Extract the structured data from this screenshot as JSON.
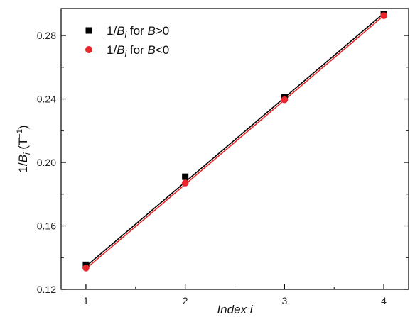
{
  "chart_data": {
    "type": "scatter",
    "title": "",
    "xlabel": "Index i",
    "ylabel": "1/B_i (T^-1)",
    "xlim": [
      0.75,
      4.25
    ],
    "ylim": [
      0.12,
      0.297
    ],
    "xticks": [
      1,
      2,
      3,
      4
    ],
    "yticks": [
      0.12,
      0.16,
      0.2,
      0.24,
      0.28
    ],
    "ytick_labels": [
      "0.12",
      "0.16",
      "0.20",
      "0.24",
      "0.28"
    ],
    "grid": false,
    "legend_position": "top-left",
    "series": [
      {
        "name": "1/B_i for B>0",
        "marker": "square",
        "color": "#000000",
        "x": [
          1,
          2,
          3,
          4
        ],
        "y": [
          0.1355,
          0.191,
          0.241,
          0.2935
        ],
        "fit_line": [
          0.1345,
          0.294
        ]
      },
      {
        "name": "1/B_i for B<0",
        "marker": "circle",
        "color": "#e8262b",
        "x": [
          1,
          2,
          3,
          4
        ],
        "y": [
          0.1335,
          0.187,
          0.2395,
          0.2925
        ],
        "fit_line": [
          0.133,
          0.2925
        ]
      }
    ]
  }
}
